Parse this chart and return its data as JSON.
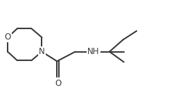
{
  "line_color": "#3a3a3a",
  "line_width": 1.5,
  "font_size": 8.5,
  "fig_width": 2.54,
  "fig_height": 1.4,
  "dpi": 100,
  "xlim": [
    0,
    11
  ],
  "ylim": [
    0,
    6
  ]
}
